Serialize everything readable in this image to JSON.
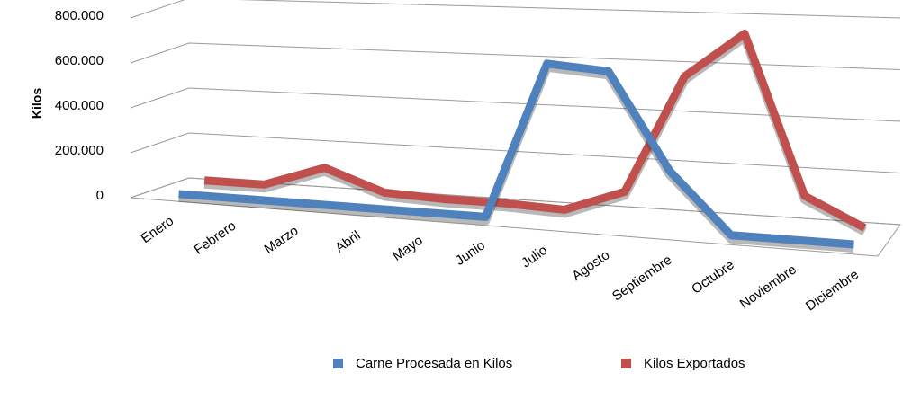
{
  "chart_data": {
    "type": "line3d",
    "y_axis_label": "Kilos",
    "categories": [
      "Enero",
      "Febrero",
      "Marzo",
      "Abril",
      "Mayo",
      "Junio",
      "Julio",
      "Agosto",
      "Septiembre",
      "Octubre",
      "Noviembre",
      "Diciembre"
    ],
    "series": [
      {
        "name": "Carne Procesada en Kilos",
        "color": "#4f81bd",
        "values": [
          0,
          0,
          0,
          0,
          0,
          0,
          650000,
          630000,
          240000,
          0,
          0,
          0
        ]
      },
      {
        "name": "Kilos Exportados",
        "color": "#c0504d",
        "values": [
          20000,
          20000,
          110000,
          20000,
          10000,
          10000,
          0,
          90000,
          570000,
          750000,
          120000,
          10000
        ]
      }
    ],
    "ylim": [
      0,
      800000
    ],
    "yticks": [
      0,
      {
        "value": 200000,
        "label": "200.000"
      },
      {
        "value": 400000,
        "label": "400.000"
      },
      {
        "value": 600000,
        "label": "600.000"
      },
      {
        "value": 800000,
        "label": "800.000"
      }
    ],
    "grid": true,
    "legend": "bottom"
  }
}
